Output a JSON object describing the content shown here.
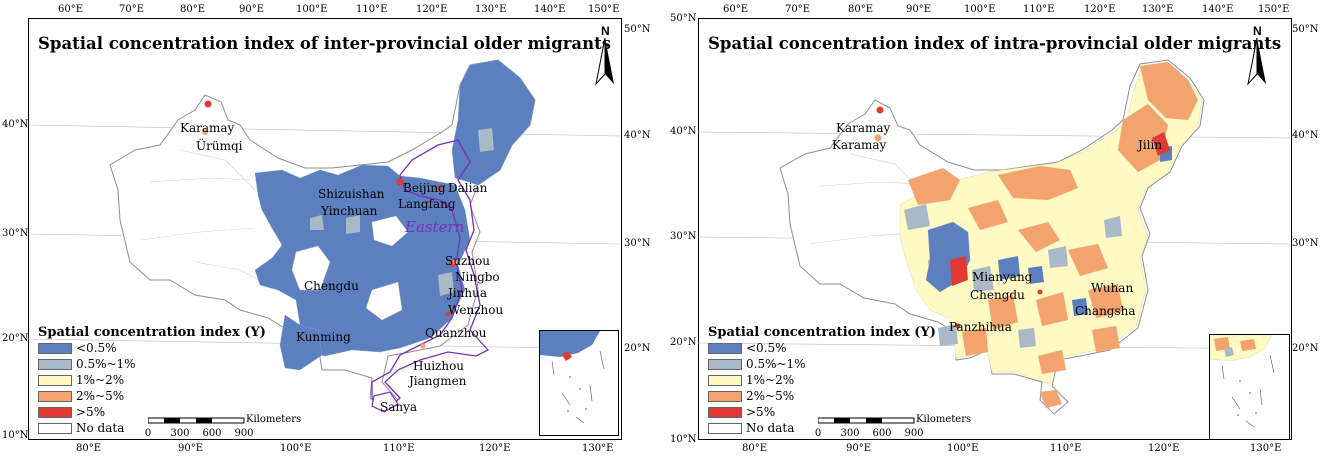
{
  "legend_levels": [
    {
      "label": "<0.5%",
      "color": "#5b7fbf"
    },
    {
      "label": "0.5%~1%",
      "color": "#a9b9c8"
    },
    {
      "label": "1%~2%",
      "color": "#fffac4"
    },
    {
      "label": "2%~5%",
      "color": "#f2a36e"
    },
    {
      "label": ">5%",
      "color": "#e03a33"
    },
    {
      "label": "No data",
      "color": "#ffffff"
    }
  ],
  "panels": [
    {
      "title": "Spatial concentration index of inter-provincial older migrants",
      "legend_title": "Spatial concentration index (Y)",
      "north_label": "N",
      "region_label": "Eastern",
      "scale": {
        "unit": "Kilometers",
        "ticks": [
          "0",
          "300",
          "600",
          "900"
        ]
      },
      "top_ticks": [
        "60°E",
        "70°E",
        "80°E",
        "90°E",
        "100°E",
        "110°E",
        "120°E",
        "130°E",
        "140°E",
        "150°E"
      ],
      "bottom_ticks": [
        "80°E",
        "90°E",
        "100°E",
        "110°E",
        "120°E",
        "130°E"
      ],
      "left_ticks": [
        "40°N",
        "30°N",
        "20°N",
        "10°N"
      ],
      "right_ticks": [
        "50°N",
        "40°N",
        "30°N",
        "20°N"
      ],
      "cities": [
        "Karamay",
        "Ürümqi",
        "Shizuishan",
        "Yinchuan",
        "Beijing",
        "Dalian",
        "Langfang",
        "Suzhou",
        "Ningbo",
        "Jinhua",
        "Wenzhou",
        "Chengdu",
        "Kunming",
        "Quanzhou",
        "Huizhou",
        "Jiangmen",
        "Sanya"
      ]
    },
    {
      "title": "Spatial concentration index of intra-provincial older migrants",
      "legend_title": "Spatial concentration index (Y)",
      "north_label": "N",
      "scale": {
        "unit": "Kilometers",
        "ticks": [
          "0",
          "300",
          "600",
          "900"
        ]
      },
      "top_ticks": [
        "60°E",
        "70°E",
        "80°E",
        "90°E",
        "100°E",
        "110°E",
        "120°E",
        "130°E",
        "140°E",
        "150°E"
      ],
      "bottom_ticks": [
        "80°E",
        "90°E",
        "100°E",
        "110°E",
        "120°E",
        "130°E"
      ],
      "left_ticks": [
        "50°N",
        "40°N",
        "30°N",
        "20°N",
        "10°N"
      ],
      "right_ticks": [
        "50°N",
        "40°N",
        "30°N",
        "20°N"
      ],
      "cities": [
        "Karamay",
        "Karamay",
        "Jilin",
        "Mianyang",
        "Chengdu",
        "Wuhan",
        "Changsha",
        "Panzhihua"
      ]
    }
  ]
}
